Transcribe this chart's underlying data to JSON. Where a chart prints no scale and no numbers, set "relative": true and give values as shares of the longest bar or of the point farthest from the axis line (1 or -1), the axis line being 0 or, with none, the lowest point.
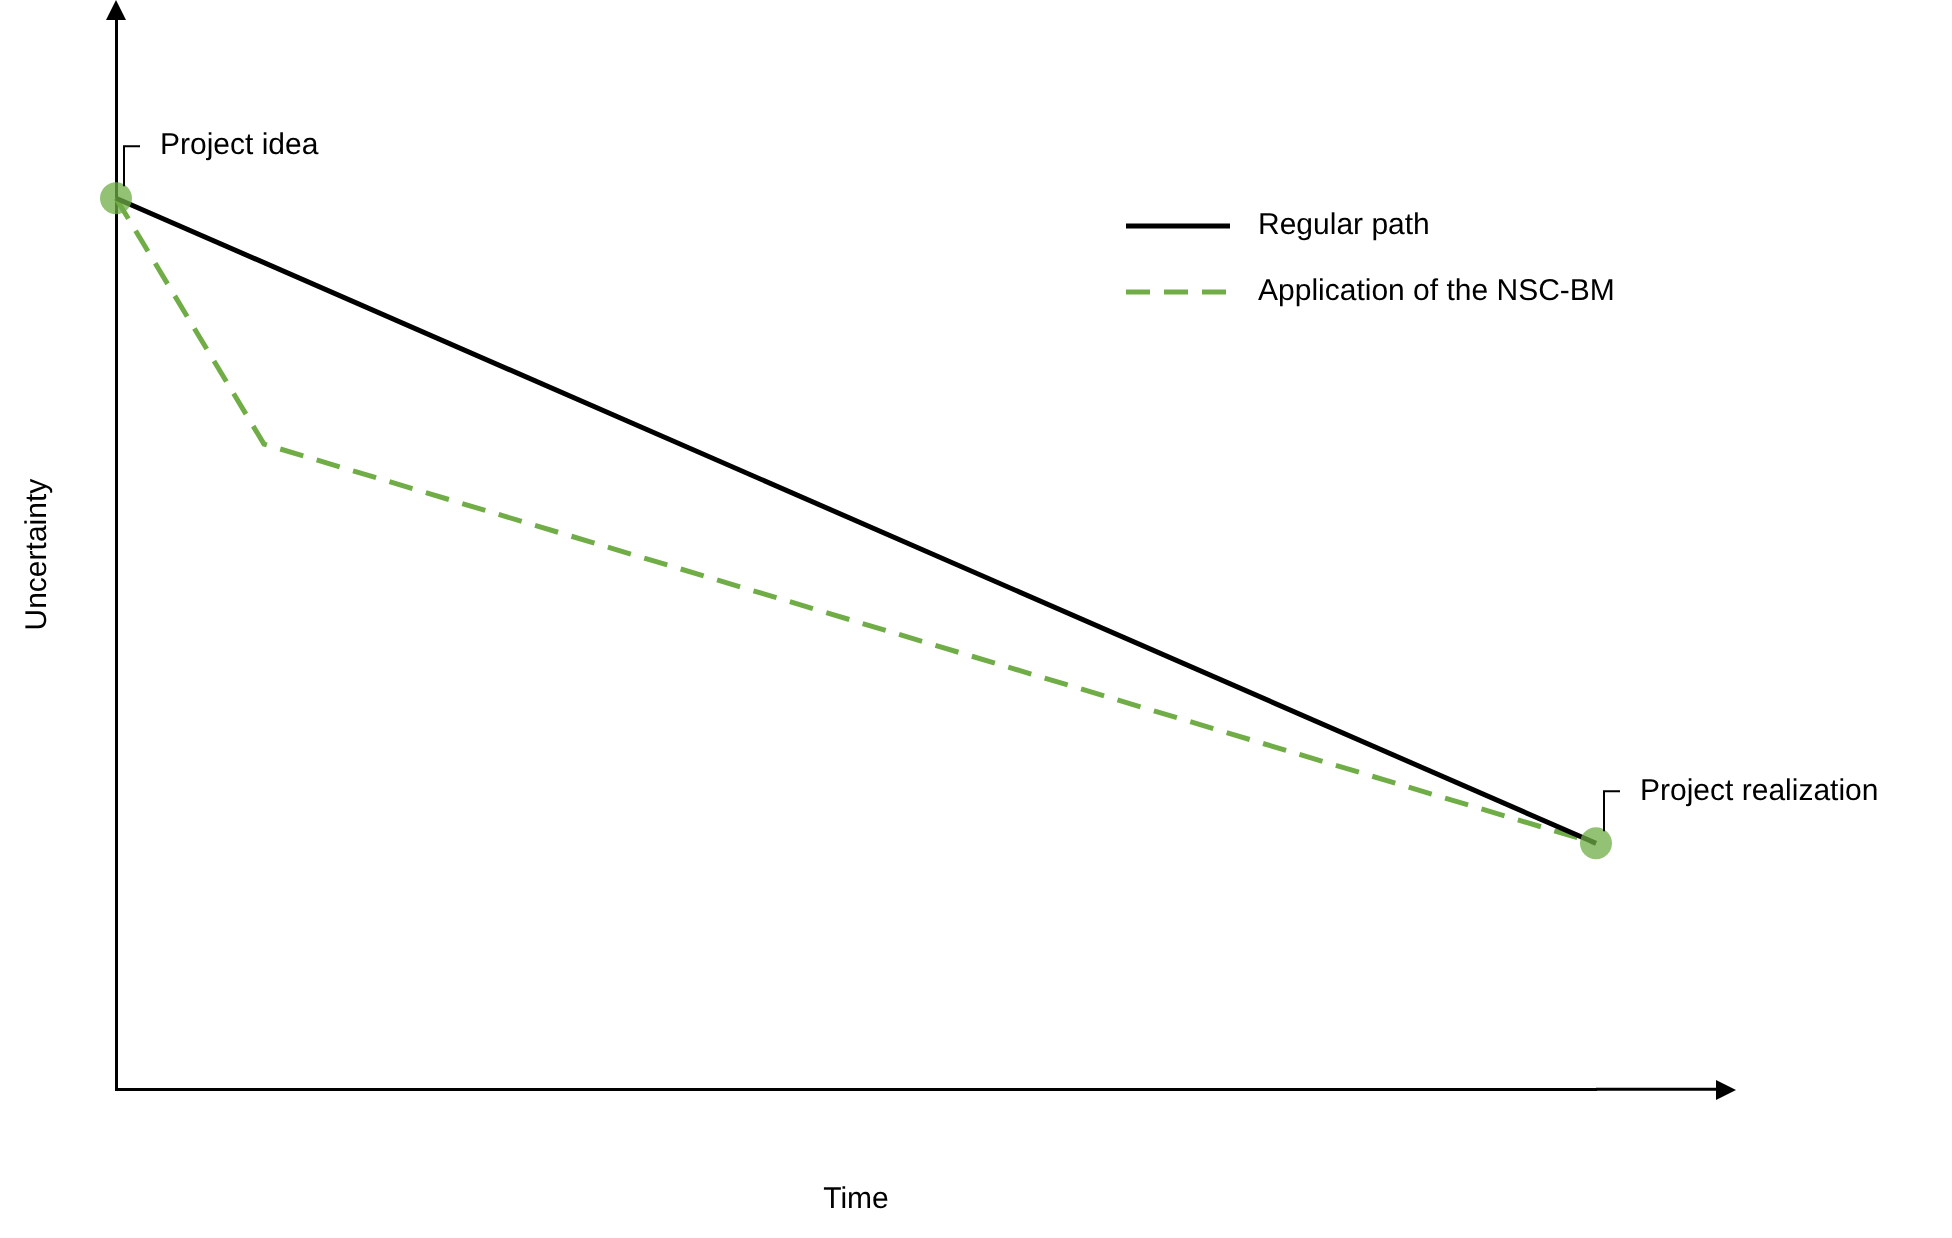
{
  "chart_data": {
    "type": "line",
    "relative": true,
    "xlabel": "Time",
    "ylabel": "Uncertainty",
    "legend": "top right",
    "categories": [
      null,
      null,
      null,
      null,
      null,
      null,
      null,
      null,
      null,
      null,
      null
    ],
    "series": [
      {
        "name": "Regular path",
        "color": "#000000",
        "values": [
          1,
          null,
          null,
          null,
          null,
          null,
          null,
          null,
          null,
          null,
          0.276
        ],
        "line_style": "solid"
      },
      {
        "name": "Application of the NSC-BM",
        "color": "#70ad47",
        "values": [
          1,
          0.724,
          null,
          null,
          null,
          null,
          null,
          null,
          null,
          null,
          0.276
        ],
        "line_style": "dashed"
      }
    ],
    "annotations": [
      "Project idea",
      "Project realization"
    ]
  }
}
